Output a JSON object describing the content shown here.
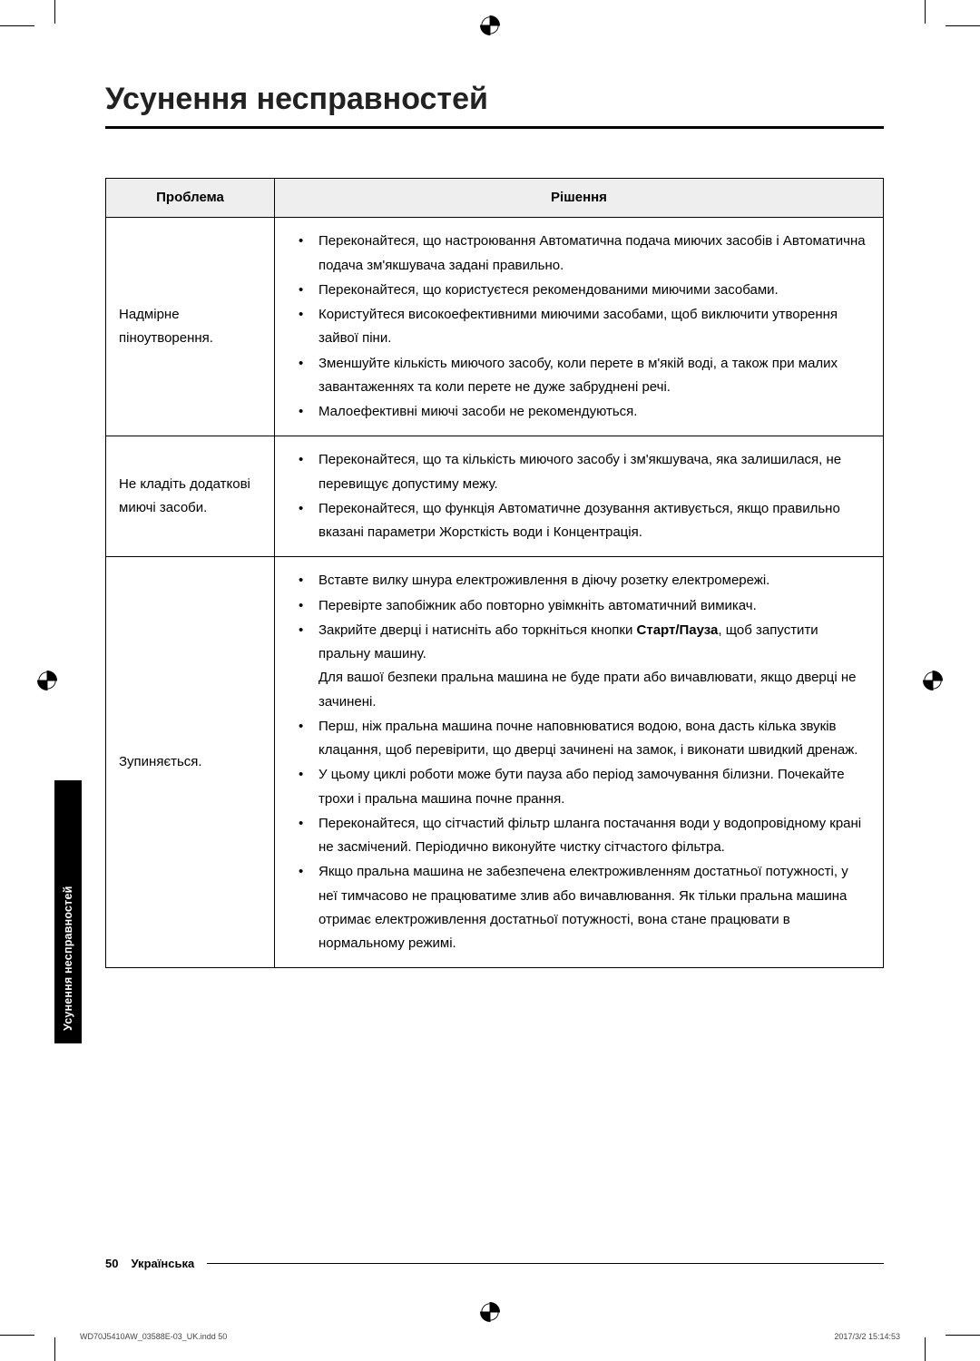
{
  "title": "Усунення несправностей",
  "headers": {
    "problem": "Проблема",
    "solution": "Рішення"
  },
  "rows": [
    {
      "problem": "Надмірне піноутворення.",
      "items": [
        {
          "text": "Переконайтеся, що настроювання Автоматична подача миючих засобів і Автоматична подача зм'якшувача задані правильно."
        },
        {
          "text": "Переконайтеся, що користуєтеся рекомендованими миючими засобами."
        },
        {
          "text": "Користуйтеся високоефективними миючими засобами, щоб виключити утворення зайвої піни."
        },
        {
          "text": "Зменшуйте кількість миючого засобу, коли перете в м'якій воді, а також при малих завантаженнях та коли перете не дуже забруднені речі."
        },
        {
          "text": "Малоефективні миючі засоби не рекомендуються."
        }
      ]
    },
    {
      "problem": "Не кладіть додаткові миючі засоби.",
      "items": [
        {
          "text": "Переконайтеся, що та кількість миючого засобу і зм'якшувача, яка залишилася, не перевищує допустиму межу."
        },
        {
          "text": "Переконайтеся, що функція Автоматичне дозування активується, якщо правильно вказані параметри Жорсткість води і Концентрація."
        }
      ]
    },
    {
      "problem": "Зупиняється.",
      "items": [
        {
          "text": "Вставте вилку шнура електроживлення в діючу розетку електромережі."
        },
        {
          "text": "Перевірте запобіжник або повторно увімкніть автоматичний вимикач."
        },
        {
          "pre": "Закрийте дверці і натисніть або торкніться кнопки ",
          "bold": "Старт/Пауза",
          "post": ", щоб запустити пральну машину.",
          "sub": "Для вашої безпеки пральна машина не буде прати або вичавлювати, якщо дверці не зачинені."
        },
        {
          "text": "Перш, ніж пральна машина почне наповнюватися водою, вона дасть кілька звуків клацання, щоб перевірити, що дверці зачинені на замок, і виконати швидкий дренаж."
        },
        {
          "text": "У цьому циклі роботи може бути пауза або період замочування білизни. Почекайте трохи і пральна машина почне прання."
        },
        {
          "text": "Переконайтеся, що сітчастий фільтр шланга постачання води у водопровідному крані не засмічений. Періодично виконуйте чистку сітчастого фільтра."
        },
        {
          "text": "Якщо пральна машина не забезпечена електроживленням достатньої потужності, у неї тимчасово не працюватиме злив або вичавлювання. Як тільки пральна машина отримає електроживлення достатньої потужності, вона стане працювати в нормальному режимі."
        }
      ]
    }
  ],
  "sideTab": "Усунення несправностей",
  "footer": {
    "page": "50",
    "lang": "Українська"
  },
  "tiny": {
    "left": "WD70J5410AW_03588E-03_UK.indd   50",
    "right": "2017/3/2   15:14:53"
  },
  "colors": {
    "headerBg": "#eeeeee",
    "border": "#000000",
    "tabBg": "#000000",
    "tabText": "#ffffff"
  }
}
